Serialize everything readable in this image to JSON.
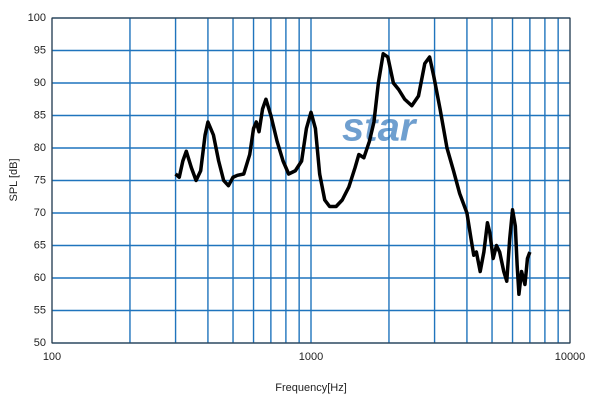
{
  "chart_data": {
    "type": "line",
    "x_label": "Frequency[Hz]",
    "y_label": "SPL [dB]",
    "watermark": "star",
    "xscale": "log",
    "xlim": [
      100,
      10000
    ],
    "ylim": [
      50,
      100
    ],
    "xticks": [
      100,
      1000,
      10000
    ],
    "xgrid": [
      200,
      300,
      400,
      500,
      600,
      700,
      800,
      900,
      2000,
      3000,
      4000,
      5000,
      6000,
      7000,
      8000,
      9000
    ],
    "yticks": [
      50,
      55,
      60,
      65,
      70,
      75,
      80,
      85,
      90,
      95,
      100
    ],
    "grid": true,
    "series": [
      {
        "color": "#000000",
        "x": [
          300,
          310,
          320,
          330,
          345,
          360,
          375,
          390,
          400,
          420,
          440,
          460,
          480,
          500,
          520,
          550,
          580,
          600,
          615,
          630,
          650,
          670,
          700,
          740,
          780,
          820,
          870,
          920,
          960,
          1000,
          1040,
          1080,
          1130,
          1180,
          1250,
          1320,
          1400,
          1480,
          1530,
          1600,
          1680,
          1750,
          1820,
          1900,
          1980,
          2080,
          2180,
          2300,
          2450,
          2600,
          2750,
          2870,
          2980,
          3150,
          3350,
          3550,
          3750,
          4000,
          4150,
          4250,
          4350,
          4500,
          4650,
          4800,
          4900,
          5050,
          5200,
          5350,
          5550,
          5700,
          5850,
          6000,
          6150,
          6250,
          6350,
          6500,
          6700,
          6850,
          7000
        ],
        "values": [
          76,
          75.5,
          78,
          79.5,
          77,
          75,
          76.5,
          82,
          84,
          82,
          78,
          75,
          74.2,
          75.5,
          75.8,
          76,
          79,
          83,
          84,
          82.5,
          86,
          87.5,
          85,
          81,
          78,
          76,
          76.5,
          78,
          83,
          85.5,
          83,
          76,
          72,
          71,
          71,
          72,
          74,
          77,
          79,
          78.5,
          81,
          84,
          90,
          94.5,
          94,
          90,
          89,
          87.5,
          86.5,
          88,
          93,
          94,
          91,
          86,
          80,
          76.5,
          73,
          70,
          66,
          63.5,
          64,
          61,
          64,
          68.5,
          67,
          63,
          65,
          64,
          61,
          59.5,
          66,
          70.5,
          68,
          62,
          57.5,
          61,
          59,
          63,
          64
        ]
      }
    ]
  }
}
